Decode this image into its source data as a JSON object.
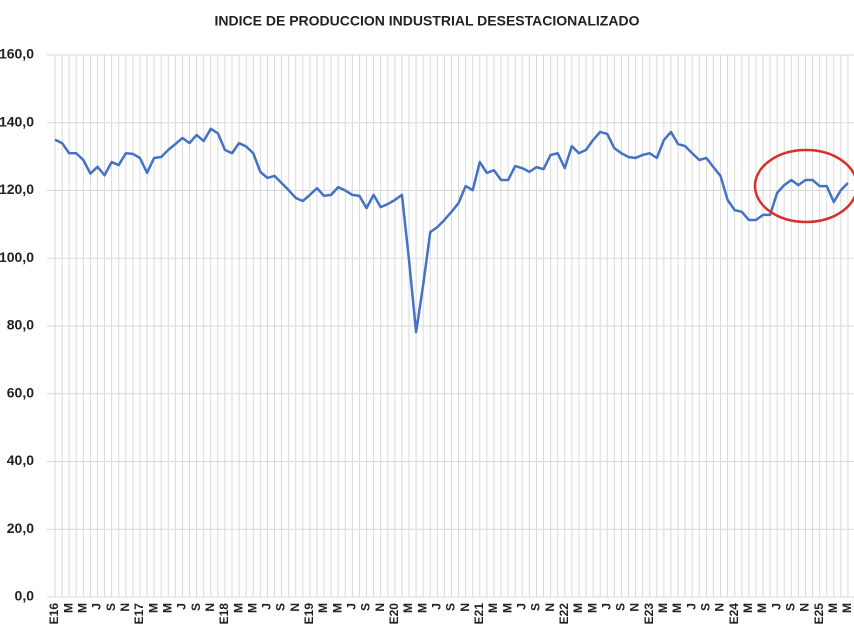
{
  "chart_data": {
    "type": "line",
    "title": "INDICE DE PRODUCCION INDUSTRIAL DESESTACIONALIZADO",
    "color": "#4472c4",
    "categories": [
      "E16",
      null,
      "M",
      null,
      "M",
      null,
      "J",
      null,
      "S",
      null,
      "N",
      null,
      "E17",
      null,
      "M",
      null,
      "M",
      null,
      "J",
      null,
      "S",
      null,
      "N",
      null,
      "E18",
      null,
      "M",
      null,
      "M",
      null,
      "J",
      null,
      "S",
      null,
      "N",
      null,
      "E19",
      null,
      "M",
      null,
      "M",
      null,
      "J",
      null,
      "S",
      null,
      "N",
      null,
      "E20",
      null,
      "M",
      null,
      "M",
      null,
      "J",
      null,
      "S",
      null,
      "N",
      null,
      "E21",
      null,
      "M",
      null,
      "M",
      null,
      "J",
      null,
      "S",
      null,
      "N",
      null,
      "E22",
      null,
      "M",
      null,
      "M",
      null,
      "J",
      null,
      "S",
      null,
      "N",
      null,
      "E23",
      null,
      "M",
      null,
      "M",
      null,
      "J",
      null,
      "S",
      null,
      "N",
      null,
      "E24",
      null,
      "M",
      null,
      "M",
      null,
      "J",
      null,
      "S",
      null,
      "N",
      null,
      "E25",
      null,
      "M",
      null,
      "M"
    ],
    "values": [
      135,
      134,
      131,
      131,
      129,
      125,
      127,
      124.5,
      128.4,
      127.5,
      131,
      130.8,
      129.6,
      125.2,
      129.6,
      129.9,
      132,
      133.7,
      135.5,
      134,
      136.4,
      134.6,
      138.2,
      136.9,
      132,
      131,
      134,
      133,
      131,
      125.5,
      123.7,
      124.3,
      122.2,
      120.1,
      117.8,
      116.9,
      118.7,
      120.7,
      118.4,
      118.7,
      121,
      120,
      118.7,
      118.4,
      114.8,
      118.7,
      115.1,
      116,
      117.2,
      118.7,
      99.5,
      78.2,
      92.1,
      107.7,
      109.2,
      111.3,
      113.7,
      116.3,
      121.3,
      120.1,
      128.4,
      125.2,
      126,
      123.1,
      123.1,
      127.2,
      126.6,
      125.5,
      126.9,
      126.3,
      130.5,
      131,
      126.6,
      133.1,
      131,
      132,
      134.9,
      137.3,
      136.7,
      132.5,
      131,
      129.9,
      129.6,
      130.5,
      131,
      129.6,
      134.9,
      137.3,
      133.7,
      133.1,
      131,
      129,
      129.6,
      126.9,
      124.3,
      117.2,
      114.2,
      113.7,
      111.3,
      111.3,
      112.8,
      112.8,
      119.3,
      121.6,
      123.1,
      121.6,
      123.1,
      123.1,
      121.3,
      121.3,
      116.6,
      120.1,
      122.2
    ],
    "ylim": [
      0,
      160
    ],
    "yticks": [
      {
        "value": 0,
        "label": "0,0"
      },
      {
        "value": 20,
        "label": "20,0"
      },
      {
        "value": 40,
        "label": "40,0"
      },
      {
        "value": 60,
        "label": "60,0"
      },
      {
        "value": 80,
        "label": "80,0"
      },
      {
        "value": 100,
        "label": "100,0"
      },
      {
        "value": 120,
        "label": "120,0"
      },
      {
        "value": 140,
        "label": "140,0"
      },
      {
        "value": 160,
        "label": "160,0"
      }
    ],
    "grid": true
  }
}
